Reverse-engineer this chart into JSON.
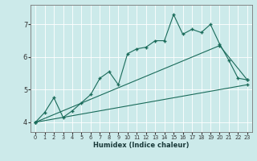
{
  "xlabel": "Humidex (Indice chaleur)",
  "bg_color": "#cceaea",
  "grid_color": "#b0d4d4",
  "line_color": "#1a6b5a",
  "xlim": [
    -0.5,
    23.5
  ],
  "ylim": [
    3.7,
    7.6
  ],
  "xticks": [
    0,
    1,
    2,
    3,
    4,
    5,
    6,
    7,
    8,
    9,
    10,
    11,
    12,
    13,
    14,
    15,
    16,
    17,
    18,
    19,
    20,
    21,
    22,
    23
  ],
  "yticks": [
    4,
    5,
    6,
    7
  ],
  "line1_x": [
    0,
    1,
    2,
    3,
    4,
    5,
    6,
    7,
    8,
    9,
    10,
    11,
    12,
    13,
    14,
    15,
    16,
    17,
    18,
    19,
    20,
    21,
    22,
    23
  ],
  "line1_y": [
    4.0,
    4.3,
    4.75,
    4.15,
    4.35,
    4.6,
    4.85,
    5.35,
    5.55,
    5.15,
    6.1,
    6.25,
    6.3,
    6.5,
    6.5,
    7.3,
    6.7,
    6.85,
    6.75,
    7.0,
    6.4,
    5.9,
    5.35,
    5.3
  ],
  "line2_x": [
    0,
    20,
    23
  ],
  "line2_y": [
    4.0,
    6.35,
    5.3
  ],
  "line3_x": [
    0,
    23
  ],
  "line3_y": [
    4.0,
    5.15
  ]
}
